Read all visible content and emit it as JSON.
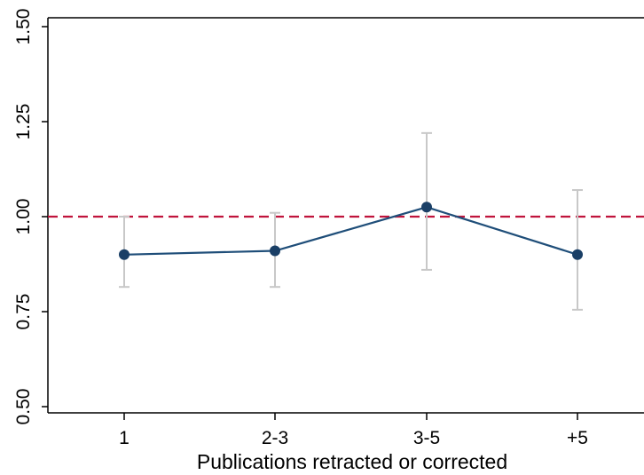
{
  "chart_data": {
    "type": "line",
    "title": "",
    "xlabel": "Publications retracted or corrected",
    "ylabel": "",
    "categories": [
      "1",
      "2-3",
      "3-5",
      "+5"
    ],
    "values": [
      0.9,
      0.91,
      1.025,
      0.9
    ],
    "ci_lower": [
      0.815,
      0.815,
      0.86,
      0.755
    ],
    "ci_upper": [
      1.0,
      1.01,
      1.22,
      1.07
    ],
    "reference_line": 1.0,
    "ylim": [
      0.5,
      1.5
    ],
    "yticks": [
      "0.50",
      "0.75",
      "1.00",
      "1.25",
      "1.50"
    ],
    "ytick_values": [
      0.5,
      0.75,
      1.0,
      1.25,
      1.5
    ],
    "grid": false,
    "colors": {
      "line": "#1f4e79",
      "point": "#1a3f66",
      "errorbar": "#c8c8c8",
      "reference": "#c0143c",
      "axis": "#000000"
    }
  }
}
